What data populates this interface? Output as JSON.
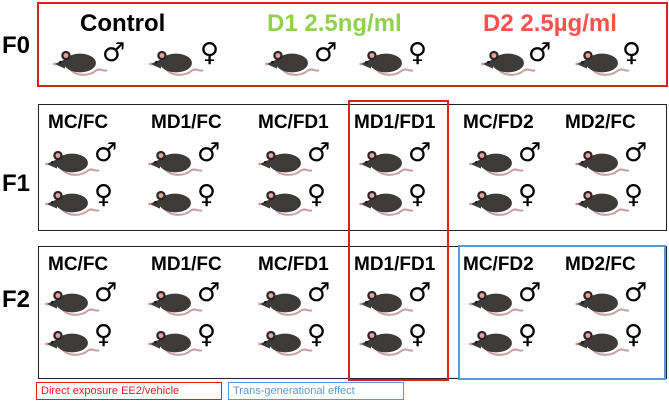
{
  "generations": [
    "F0",
    "F1",
    "F2"
  ],
  "f0": [
    {
      "label": "Control",
      "color": "#000000"
    },
    {
      "label": "D1 2.5ng/ml",
      "color": "#92d050"
    },
    {
      "label": "D2 2.5µg/ml",
      "color": "#ff5050"
    }
  ],
  "groups": [
    "MC/FC",
    "MD1/FC",
    "MC/FD1",
    "MD1/FD1",
    "MC/FD2",
    "MD2/FC"
  ],
  "symbols": {
    "male": "♂",
    "female": "♀"
  },
  "legend": {
    "direct": "Direct exposure  EE2/vehicle",
    "transgenerational": "Trans-generational effect"
  },
  "colors": {
    "mouse_control": "#3d3a3a",
    "mouse_d1": "#8fe05c",
    "mouse_d2": "#f0362a",
    "red_frame": "#e02020",
    "blue_frame": "#5a9ad4"
  }
}
